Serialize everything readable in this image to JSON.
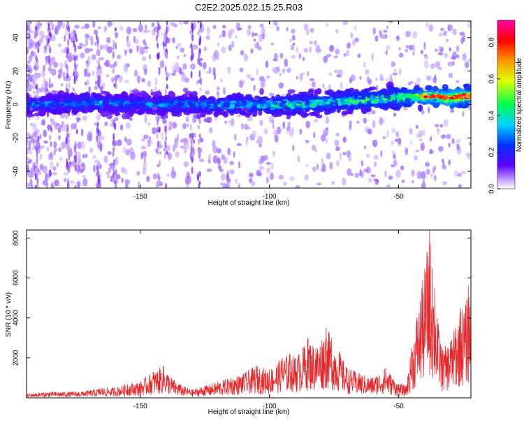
{
  "title": "C2E2.2025.022.15.25.R03",
  "chart_data": [
    {
      "type": "heatmap",
      "xlabel": "Height of straight line (km)",
      "ylabel": "Frequency (Hz)",
      "xlim": [
        -194,
        -22
      ],
      "ylim": [
        -50,
        50
      ],
      "xticks": [
        -150,
        -100,
        -50
      ],
      "yticks": [
        -40,
        -20,
        0,
        20,
        40
      ],
      "colorbar": {
        "label": "Normalized spectral amplitude",
        "range": [
          0,
          0.92
        ],
        "ticks": [
          0.0,
          0.2,
          0.4,
          0.6,
          0.8
        ]
      },
      "ridge": {
        "x": [
          -194,
          -170,
          -150,
          -130,
          -110,
          -90,
          -70,
          -50,
          -40,
          -30,
          -22
        ],
        "frequency": [
          0,
          1,
          0,
          0,
          0,
          0,
          2,
          4,
          5,
          4,
          5
        ],
        "peak_amplitude": [
          0.35,
          0.4,
          0.35,
          0.38,
          0.45,
          0.5,
          0.55,
          0.62,
          0.75,
          0.9,
          0.8
        ]
      }
    },
    {
      "type": "line",
      "xlabel": "Height of straight line (km)",
      "ylabel": "SNR (10 * v/v)",
      "xlim": [
        -194,
        -22
      ],
      "ylim": [
        0,
        8400
      ],
      "xticks": [
        -150,
        -100,
        -50
      ],
      "yticks": [
        2000,
        4000,
        6000,
        8000
      ],
      "series": [
        {
          "color": "#e8262a",
          "x": [
            -194,
            -185,
            -175,
            -168,
            -165,
            -160,
            -155,
            -150,
            -145,
            -141,
            -138,
            -135,
            -130,
            -125,
            -120,
            -115,
            -110,
            -105,
            -100,
            -95,
            -92,
            -90,
            -87,
            -85,
            -82,
            -78,
            -76,
            -73,
            -70,
            -65,
            -60,
            -55,
            -50,
            -47,
            -45,
            -43,
            -41,
            -39,
            -38,
            -37,
            -36,
            -35,
            -33,
            -30,
            -28,
            -26,
            -24,
            -23,
            -22
          ],
          "y": [
            200,
            300,
            300,
            400,
            500,
            500,
            700,
            800,
            1300,
            1600,
            1000,
            700,
            400,
            600,
            800,
            1000,
            1200,
            1600,
            1400,
            2000,
            2200,
            2000,
            2500,
            3000,
            2500,
            3500,
            3000,
            2300,
            1500,
            1200,
            1000,
            1500,
            700,
            600,
            2500,
            4000,
            5500,
            7300,
            8400,
            6500,
            5500,
            4000,
            2400,
            2800,
            3500,
            4500,
            4600,
            5600,
            5000
          ]
        }
      ]
    }
  ]
}
